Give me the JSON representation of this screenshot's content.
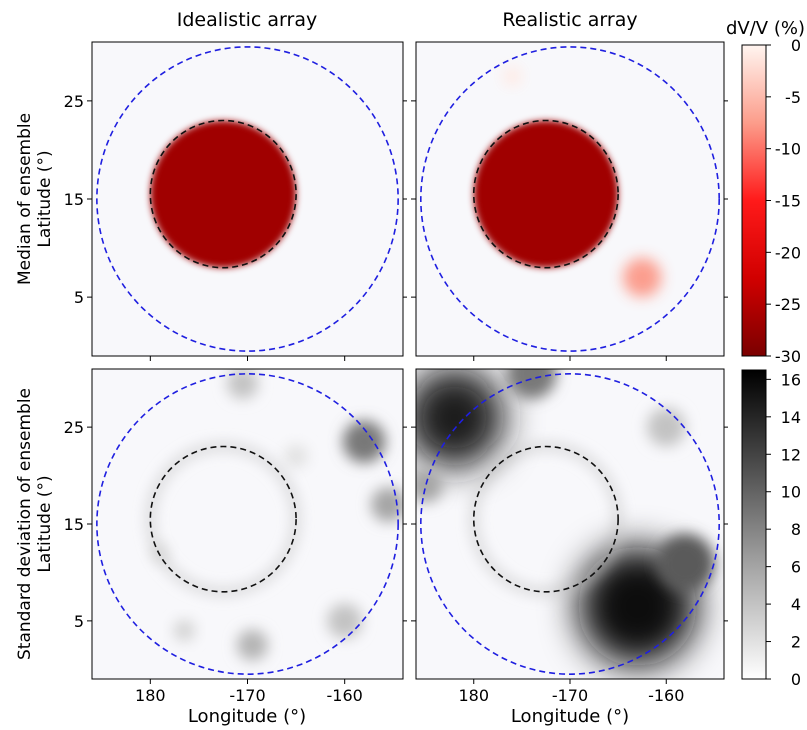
{
  "column_titles": [
    "Idealistic array",
    "Realistic array"
  ],
  "row_labels": [
    [
      "Median of ensemble",
      "Latitude (°)"
    ],
    [
      "Standard deviation of ensemble",
      "Latitude (°)"
    ]
  ],
  "colors": {
    "outer_circle": "#1f1fe0",
    "inner_circle": "#111111",
    "background": "#f8f8fb",
    "red_dark": "#a00000",
    "red_mid": "#ff1010",
    "gray_dark": "#0d0d0d"
  },
  "chart_data": [
    {
      "type": "heatmap",
      "panel": "median-idealistic",
      "xlabel": "",
      "ylabel": "",
      "xlim": [
        -186,
        -154
      ],
      "ylim": [
        -1,
        31
      ],
      "yticks": [
        5,
        15,
        25
      ],
      "xticks": [],
      "colorbar": "dvv",
      "outer_circle": {
        "lon": -170,
        "lat": 15,
        "radius_deg": 15.5
      },
      "inner_circle": {
        "lon": -172.5,
        "lat": 15.5,
        "radius_deg": 7.5
      },
      "anomalies": [
        {
          "lon": -172.5,
          "lat": 15.5,
          "radius_deg": 7.5,
          "value": -28
        }
      ]
    },
    {
      "type": "heatmap",
      "panel": "median-realistic",
      "xlabel": "",
      "ylabel": "",
      "xlim": [
        -186,
        -154
      ],
      "ylim": [
        -1,
        31
      ],
      "yticks": [],
      "xticks": [],
      "colorbar": "dvv",
      "outer_circle": {
        "lon": -170,
        "lat": 15,
        "radius_deg": 15.5
      },
      "inner_circle": {
        "lon": -172.5,
        "lat": 15.5,
        "radius_deg": 7.5
      },
      "anomalies": [
        {
          "lon": -172.5,
          "lat": 15.5,
          "radius_deg": 7.5,
          "value": -28
        },
        {
          "lon": -162.5,
          "lat": 7,
          "radius_deg": 2,
          "value": -8
        },
        {
          "lon": -176,
          "lat": 27.5,
          "radius_deg": 1,
          "value": -1
        }
      ]
    },
    {
      "type": "heatmap",
      "panel": "std-idealistic",
      "xlabel": "Longitude (°)",
      "ylabel": "",
      "xlim": [
        -186,
        -154
      ],
      "ylim": [
        -1,
        31
      ],
      "xticks": [
        -180,
        -170,
        -160
      ],
      "xticklabels": [
        "180",
        "-170",
        "-160"
      ],
      "yticks": [
        5,
        15,
        25
      ],
      "colorbar": "std",
      "outer_circle": {
        "lon": -170,
        "lat": 15,
        "radius_deg": 15.5
      },
      "inner_circle": {
        "lon": -172.5,
        "lat": 15.5,
        "radius_deg": 7.5
      },
      "blobs": [
        {
          "lon": -170.5,
          "lat": 29.5,
          "radius_deg": 1.6,
          "value": 4
        },
        {
          "lon": -158,
          "lat": 23.5,
          "radius_deg": 2.2,
          "value": 9
        },
        {
          "lon": -155.5,
          "lat": 17,
          "radius_deg": 1.8,
          "value": 6
        },
        {
          "lon": -160,
          "lat": 5,
          "radius_deg": 1.8,
          "value": 4
        },
        {
          "lon": -169.5,
          "lat": 2.5,
          "radius_deg": 1.6,
          "value": 5
        },
        {
          "lon": -176.5,
          "lat": 4,
          "radius_deg": 1.1,
          "value": 3
        },
        {
          "lon": -179,
          "lat": 12,
          "radius_deg": 1,
          "value": 2
        },
        {
          "lon": -165,
          "lat": 22,
          "radius_deg": 1.2,
          "value": 2
        }
      ]
    },
    {
      "type": "heatmap",
      "panel": "std-realistic",
      "xlabel": "Longitude (°)",
      "ylabel": "",
      "xlim": [
        -186,
        -154
      ],
      "ylim": [
        -1,
        31
      ],
      "xticks": [
        -180,
        -170,
        -160
      ],
      "xticklabels": [
        "180",
        "-170",
        "-160"
      ],
      "yticks": [],
      "colorbar": "std",
      "outer_circle": {
        "lon": -170,
        "lat": 15,
        "radius_deg": 15.5
      },
      "inner_circle": {
        "lon": -172.5,
        "lat": 15.5,
        "radius_deg": 7.5
      },
      "blobs": [
        {
          "lon": -182,
          "lat": 26,
          "radius_deg": 5.2,
          "value": 15
        },
        {
          "lon": -174,
          "lat": 30.5,
          "radius_deg": 2.6,
          "value": 9
        },
        {
          "lon": -163,
          "lat": 6.5,
          "radius_deg": 6.2,
          "value": 16.5
        },
        {
          "lon": -158,
          "lat": 11,
          "radius_deg": 3,
          "value": 11
        },
        {
          "lon": -160,
          "lat": 25,
          "radius_deg": 2,
          "value": 4
        },
        {
          "lon": -185,
          "lat": 19,
          "radius_deg": 1.8,
          "value": 6
        }
      ]
    }
  ],
  "colorbars": [
    {
      "name": "dvv",
      "label": "dV/V (%)",
      "range": [
        -30,
        0
      ],
      "ticks": [
        0,
        -5,
        -10,
        -15,
        -20,
        -25,
        -30
      ],
      "ticklabels": [
        "0",
        "-5",
        "-10",
        "-15",
        "-20",
        "-25",
        "-30"
      ],
      "colormap": "reds_reversed"
    },
    {
      "name": "std",
      "label": "",
      "range": [
        0,
        16.5
      ],
      "ticks": [
        0,
        2,
        4,
        6,
        8,
        10,
        12,
        14,
        16
      ],
      "ticklabels": [
        "0",
        "2",
        "4",
        "6",
        "8",
        "10",
        "12",
        "14",
        "16"
      ],
      "colormap": "greys"
    }
  ]
}
